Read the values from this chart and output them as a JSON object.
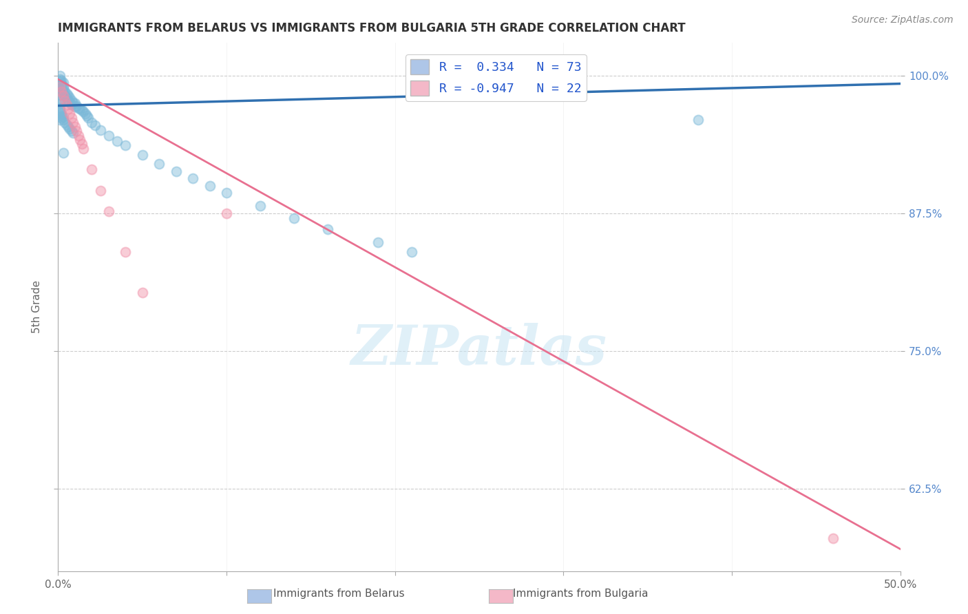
{
  "title": "IMMIGRANTS FROM BELARUS VS IMMIGRANTS FROM BULGARIA 5TH GRADE CORRELATION CHART",
  "source": "Source: ZipAtlas.com",
  "ylabel": "5th Grade",
  "xlim": [
    0.0,
    0.5
  ],
  "ylim": [
    0.55,
    1.03
  ],
  "xticks": [
    0.0,
    0.1,
    0.2,
    0.3,
    0.4,
    0.5
  ],
  "xticklabels": [
    "0.0%",
    "",
    "",
    "",
    "",
    "50.0%"
  ],
  "yticks": [
    0.625,
    0.75,
    0.875,
    1.0
  ],
  "yticklabels": [
    "62.5%",
    "75.0%",
    "87.5%",
    "100.0%"
  ],
  "legend_blue_label": "R =  0.334   N = 73",
  "legend_pink_label": "R = -0.947   N = 22",
  "legend_blue_color": "#aec6e8",
  "legend_pink_color": "#f4b8c8",
  "blue_scatter_color": "#7ab8d8",
  "pink_scatter_color": "#f090a8",
  "blue_line_color": "#3070b0",
  "pink_line_color": "#e87090",
  "watermark": "ZIPatlas",
  "background_color": "#ffffff",
  "grid_color": "#cccccc",
  "ytick_color": "#5588cc",
  "blue_scatter_x": [
    0.001,
    0.001,
    0.002,
    0.002,
    0.003,
    0.003,
    0.004,
    0.004,
    0.005,
    0.005,
    0.006,
    0.006,
    0.007,
    0.007,
    0.008,
    0.008,
    0.009,
    0.01,
    0.01,
    0.011,
    0.012,
    0.013,
    0.014,
    0.015,
    0.001,
    0.001,
    0.002,
    0.002,
    0.003,
    0.003,
    0.001,
    0.001,
    0.002,
    0.001,
    0.001,
    0.001,
    0.001,
    0.001,
    0.001,
    0.002,
    0.002,
    0.002,
    0.003,
    0.003,
    0.004,
    0.005,
    0.006,
    0.007,
    0.008,
    0.009,
    0.016,
    0.017,
    0.018,
    0.02,
    0.022,
    0.025,
    0.03,
    0.035,
    0.04,
    0.05,
    0.06,
    0.07,
    0.08,
    0.09,
    0.1,
    0.12,
    0.14,
    0.16,
    0.19,
    0.21,
    0.003,
    0.38,
    0.001
  ],
  "blue_scatter_y": [
    0.995,
    0.99,
    0.992,
    0.988,
    0.989,
    0.985,
    0.986,
    0.982,
    0.984,
    0.98,
    0.982,
    0.978,
    0.98,
    0.976,
    0.978,
    0.974,
    0.976,
    0.975,
    0.972,
    0.973,
    0.971,
    0.97,
    0.969,
    0.968,
    0.997,
    1.0,
    0.996,
    0.993,
    0.994,
    0.991,
    0.983,
    0.987,
    0.989,
    0.979,
    0.977,
    0.975,
    0.971,
    0.969,
    0.967,
    0.966,
    0.964,
    0.962,
    0.963,
    0.96,
    0.958,
    0.956,
    0.954,
    0.952,
    0.95,
    0.948,
    0.966,
    0.964,
    0.962,
    0.958,
    0.955,
    0.951,
    0.946,
    0.941,
    0.937,
    0.928,
    0.92,
    0.913,
    0.907,
    0.9,
    0.894,
    0.882,
    0.871,
    0.861,
    0.849,
    0.84,
    0.93,
    0.96,
    0.96
  ],
  "pink_scatter_x": [
    0.001,
    0.002,
    0.003,
    0.004,
    0.005,
    0.006,
    0.007,
    0.008,
    0.009,
    0.01,
    0.011,
    0.012,
    0.013,
    0.014,
    0.015,
    0.02,
    0.025,
    0.03,
    0.04,
    0.05,
    0.1,
    0.46
  ],
  "pink_scatter_y": [
    0.99,
    0.986,
    0.982,
    0.978,
    0.974,
    0.97,
    0.966,
    0.962,
    0.958,
    0.954,
    0.95,
    0.946,
    0.942,
    0.938,
    0.934,
    0.915,
    0.896,
    0.877,
    0.84,
    0.803,
    0.875,
    0.58
  ],
  "blue_line_x": [
    0.0,
    0.5
  ],
  "blue_line_y": [
    0.973,
    0.993
  ],
  "pink_line_x": [
    0.0,
    0.5
  ],
  "pink_line_y": [
    0.997,
    0.57
  ]
}
